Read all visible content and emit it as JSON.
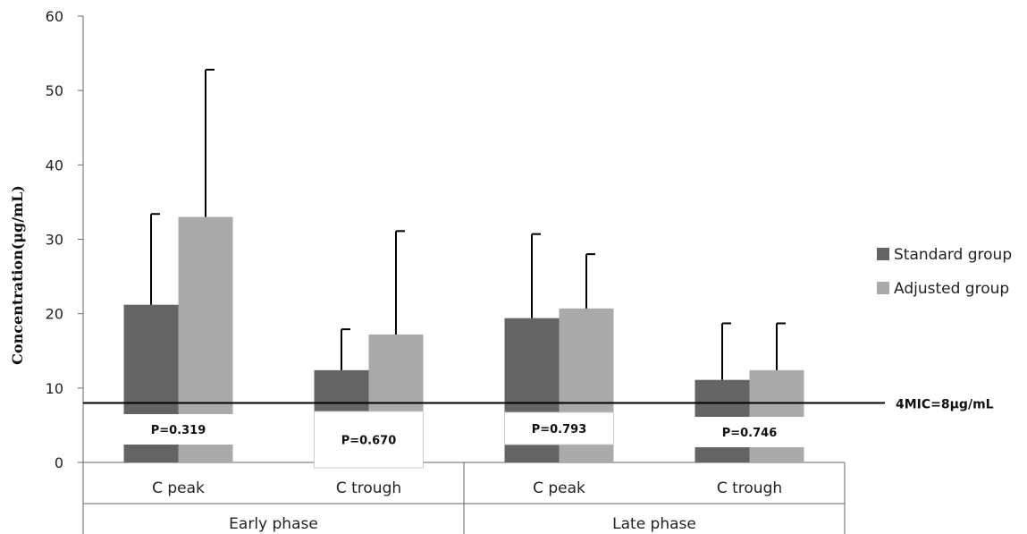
{
  "chart_data": {
    "type": "bar",
    "ylabel": "Concentration(μg/mL)",
    "ylim": [
      0,
      60
    ],
    "yticks": [
      0,
      10,
      20,
      30,
      40,
      50,
      60
    ],
    "groups": [
      {
        "label": "Early phase",
        "categories": [
          "C peak",
          "C trough"
        ]
      },
      {
        "label": "Late phase",
        "categories": [
          "C peak",
          "C trough"
        ]
      }
    ],
    "categories": [
      "C peak",
      "C trough",
      "C peak",
      "C trough"
    ],
    "series": [
      {
        "name": "Standard group",
        "color": "#646464",
        "values": [
          21.2,
          12.4,
          19.4,
          11.1
        ],
        "error": [
          12.2,
          5.5,
          11.3,
          7.6
        ]
      },
      {
        "name": "Adjusted group",
        "color": "#aaaaaa",
        "values": [
          33.0,
          17.2,
          20.7,
          12.4
        ],
        "error": [
          19.8,
          13.9,
          7.3,
          6.3
        ]
      }
    ],
    "p_values": [
      "P=0.319",
      "P=0.670",
      "P=0.793",
      "P=0.746"
    ],
    "reference_line": {
      "value": 8,
      "label": "4MIC=8μg/mL"
    },
    "legend_position": "right",
    "grid": false
  }
}
